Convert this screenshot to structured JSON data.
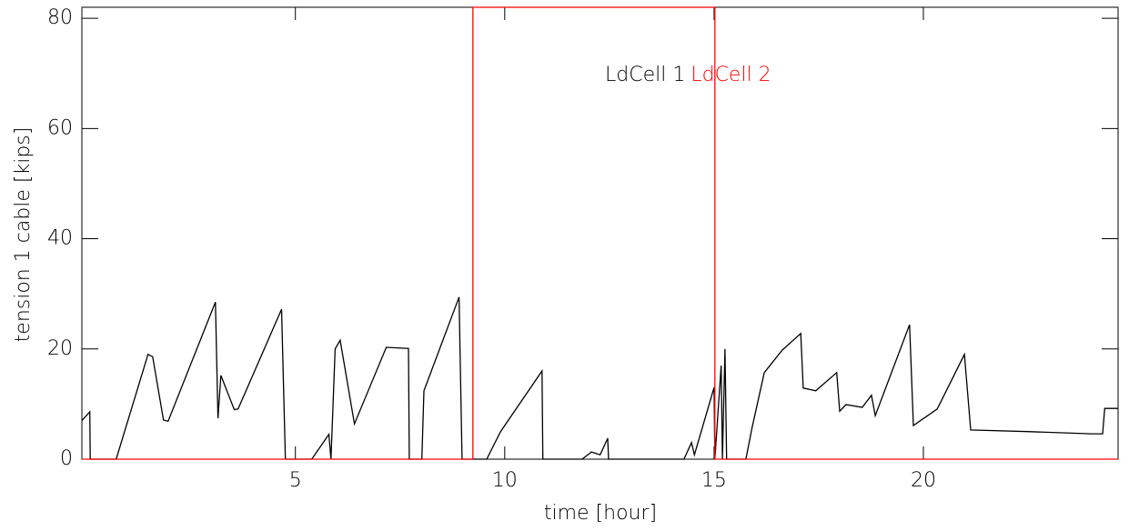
{
  "chart_data": {
    "type": "line",
    "xlabel": "time [hour]",
    "ylabel": "tension 1 cable [kips]",
    "xlim": [
      -0.1,
      24.65
    ],
    "ylim": [
      0,
      82
    ],
    "xticks": [
      5,
      10,
      15,
      20
    ],
    "yticks": [
      0,
      20,
      40,
      60,
      80
    ],
    "legend": "top-center",
    "series": [
      {
        "name": "LdCell 1",
        "color": "#000000",
        "x": [
          -0.1,
          0.09,
          0.1,
          0.72,
          1.48,
          1.59,
          1.85,
          1.96,
          3.09,
          3.15,
          3.22,
          3.54,
          3.63,
          4.67,
          4.76,
          5.39,
          5.8,
          5.85,
          5.95,
          6.07,
          6.41,
          7.17,
          7.7,
          7.72,
          8.02,
          8.07,
          8.91,
          8.98,
          9.57,
          9.9,
          10.89,
          10.91,
          11.85,
          12.07,
          12.28,
          12.46,
          12.48,
          14.28,
          14.46,
          14.53,
          15.0,
          15.02,
          15.17,
          15.2,
          15.26,
          15.3,
          15.76,
          15.91,
          16.2,
          16.63,
          17.07,
          17.13,
          17.43,
          17.93,
          18.0,
          18.15,
          18.54,
          18.76,
          18.85,
          19.67,
          19.76,
          20.33,
          20.98,
          21.13,
          22.5,
          24.02,
          24.28,
          24.33,
          24.65
        ],
        "values": [
          7,
          8.6,
          0,
          0,
          19,
          18.6,
          7.1,
          6.9,
          28.5,
          7.4,
          15.2,
          9,
          9.1,
          27.2,
          0,
          0,
          4.5,
          0,
          20,
          21.6,
          6.4,
          20.3,
          20.1,
          0,
          0,
          12.4,
          29.4,
          0,
          0,
          5,
          16,
          0,
          0,
          1.3,
          0.8,
          3.8,
          0,
          0,
          3,
          0.8,
          13,
          0,
          17,
          0,
          20,
          0,
          0,
          5.8,
          15.7,
          19.8,
          22.8,
          12.9,
          12.4,
          15.7,
          8.7,
          9.9,
          9.4,
          11.6,
          7.9,
          24.4,
          6.1,
          9.1,
          19,
          5.3,
          5,
          4.6,
          4.6,
          9.2,
          9.2
        ]
      },
      {
        "name": "LdCell 2",
        "color": "#ff0000",
        "x": [
          -0.1,
          9.24,
          9.24,
          15.02,
          15.02,
          24.65
        ],
        "values": [
          0,
          0,
          82,
          82,
          0,
          0
        ]
      }
    ]
  }
}
